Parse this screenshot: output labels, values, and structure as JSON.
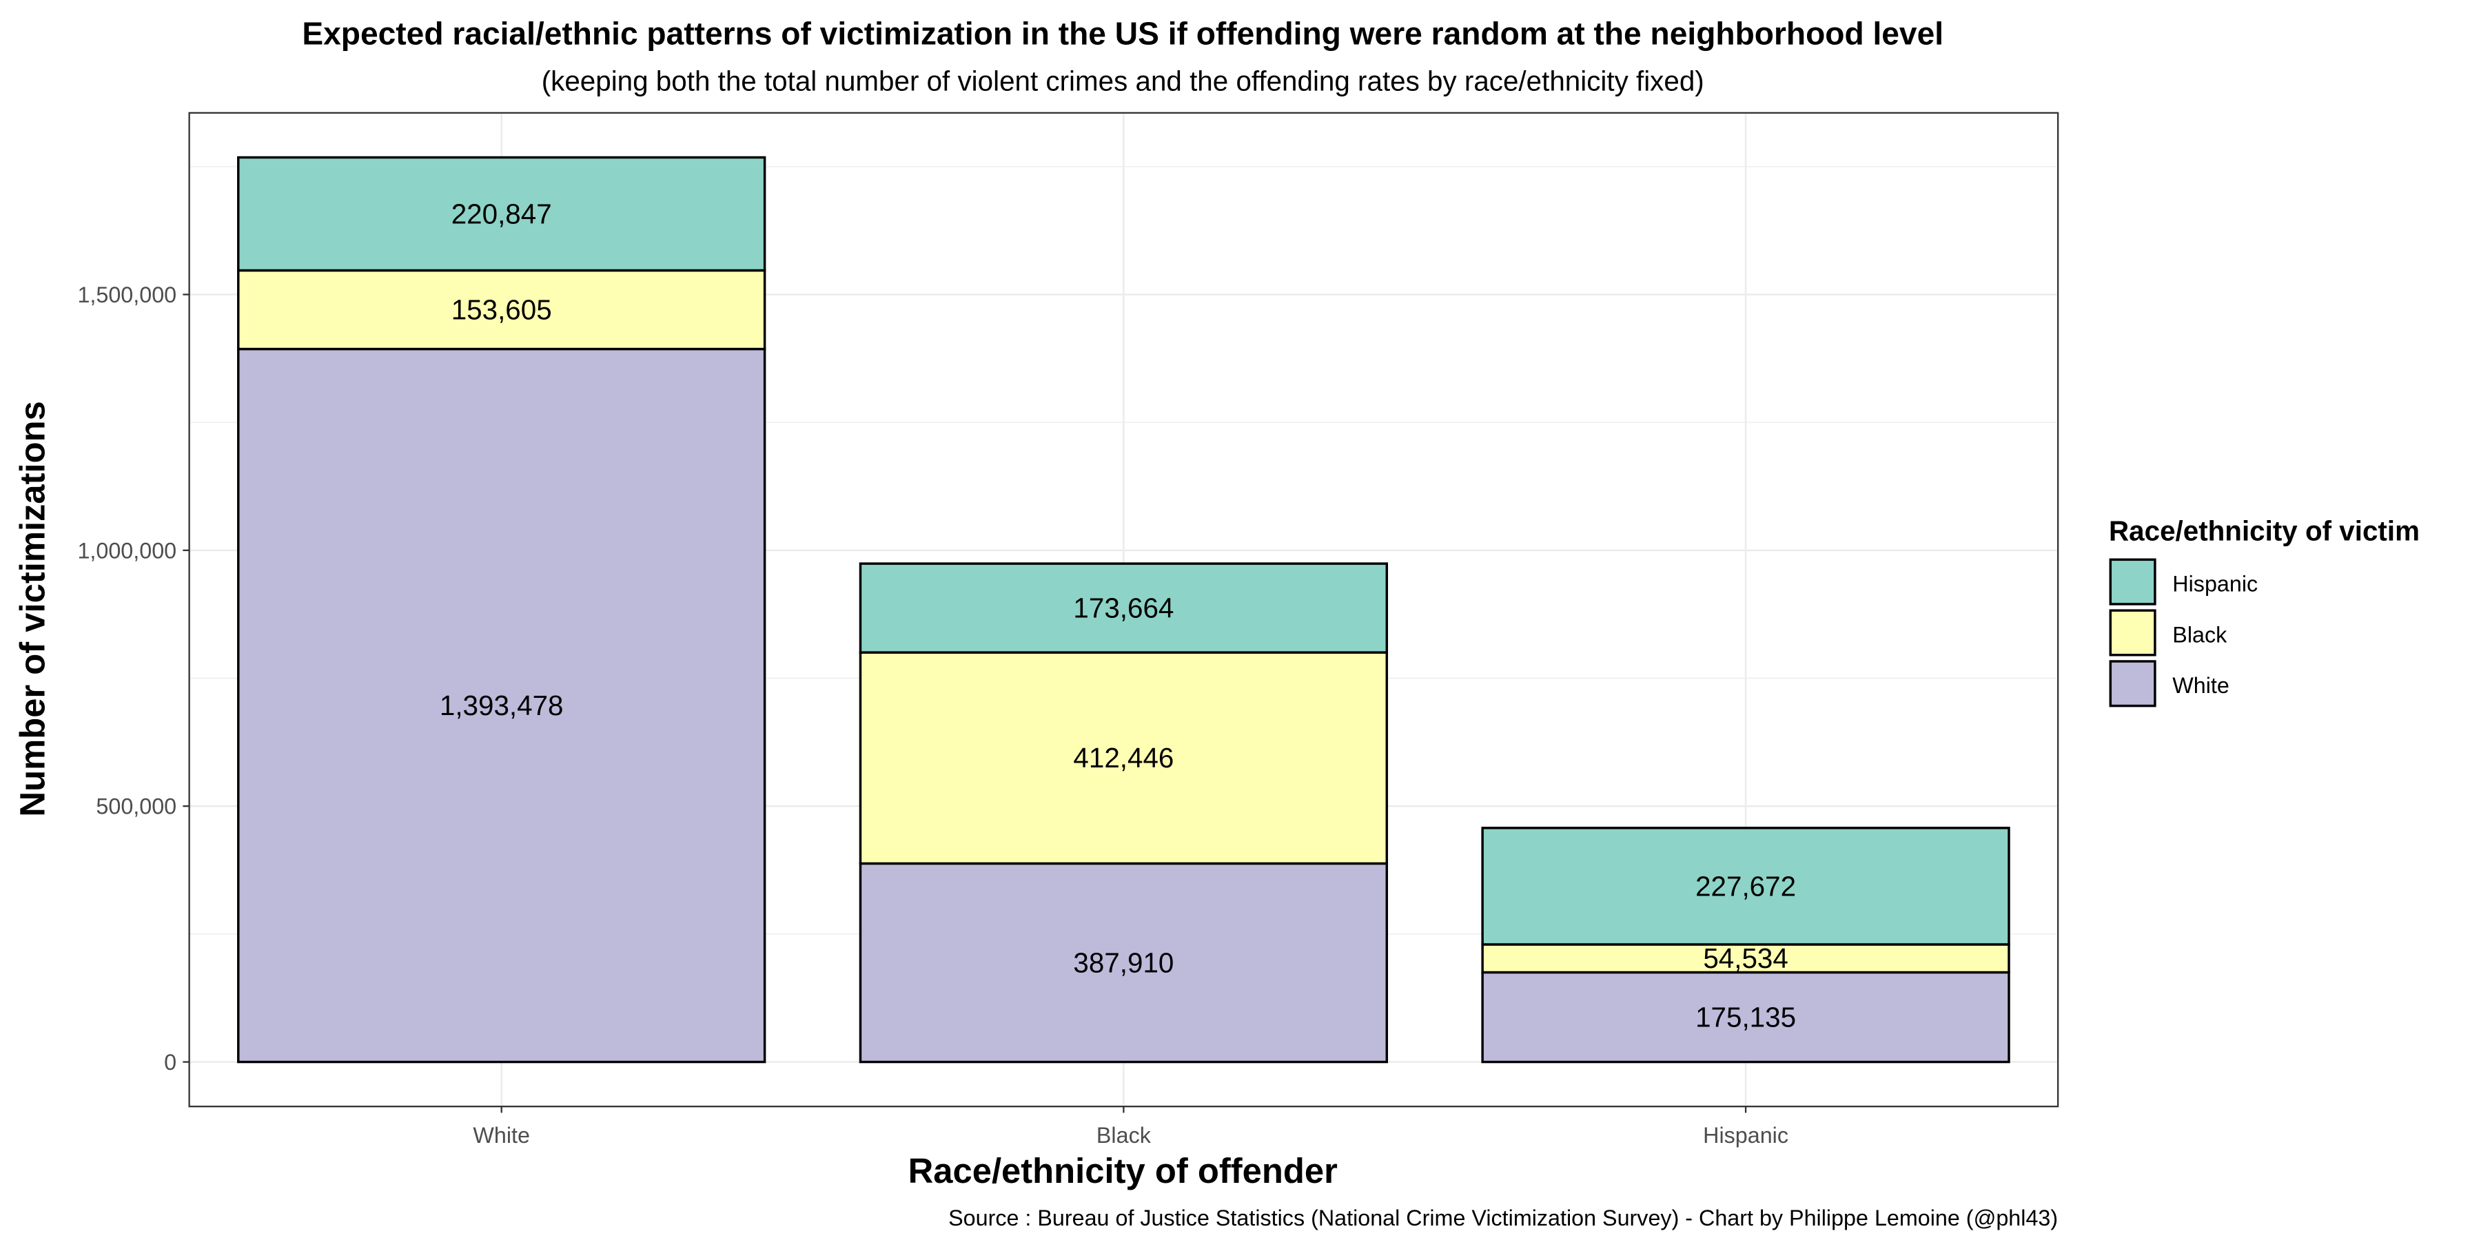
{
  "chart_data": {
    "type": "bar",
    "stacked": true,
    "title": "Expected racial/ethnic patterns of victimization in the US if offending were random at the neighborhood level",
    "subtitle": "(keeping both the total number of violent crimes and the offending rates by race/ethnicity fixed)",
    "xlabel": "Race/ethnicity of offender",
    "ylabel": "Number of victimizations",
    "caption": "Source : Bureau of Justice Statistics (National Crime Victimization Survey) - Chart by Philippe Lemoine (@phl43)",
    "categories": [
      "White",
      "Black",
      "Hispanic"
    ],
    "series": [
      {
        "name": "White",
        "color": "#BEBADA",
        "values": [
          1393478,
          387910,
          175135
        ],
        "labels": [
          "1,393,478",
          "387,910",
          "175,135"
        ]
      },
      {
        "name": "Black",
        "color": "#FFFFB3",
        "values": [
          153605,
          412446,
          54534
        ],
        "labels": [
          "153,605",
          "412,446",
          "54,534"
        ]
      },
      {
        "name": "Hispanic",
        "color": "#8DD3C7",
        "values": [
          220847,
          173664,
          227672
        ],
        "labels": [
          "220,847",
          "173,664",
          "227,672"
        ]
      }
    ],
    "ylim": [
      -87000,
      1855000
    ],
    "yticks": [
      0,
      500000,
      1000000,
      1500000
    ],
    "ytick_labels": [
      "0",
      "500,000",
      "1,000,000",
      "1,500,000"
    ],
    "grid": true,
    "legend": {
      "title": "Race/ethnicity of victim",
      "placement": "right",
      "entries": [
        {
          "label": "Hispanic",
          "color": "#8DD3C7"
        },
        {
          "label": "Black",
          "color": "#FFFFB3"
        },
        {
          "label": "White",
          "color": "#BEBADA"
        }
      ]
    }
  }
}
